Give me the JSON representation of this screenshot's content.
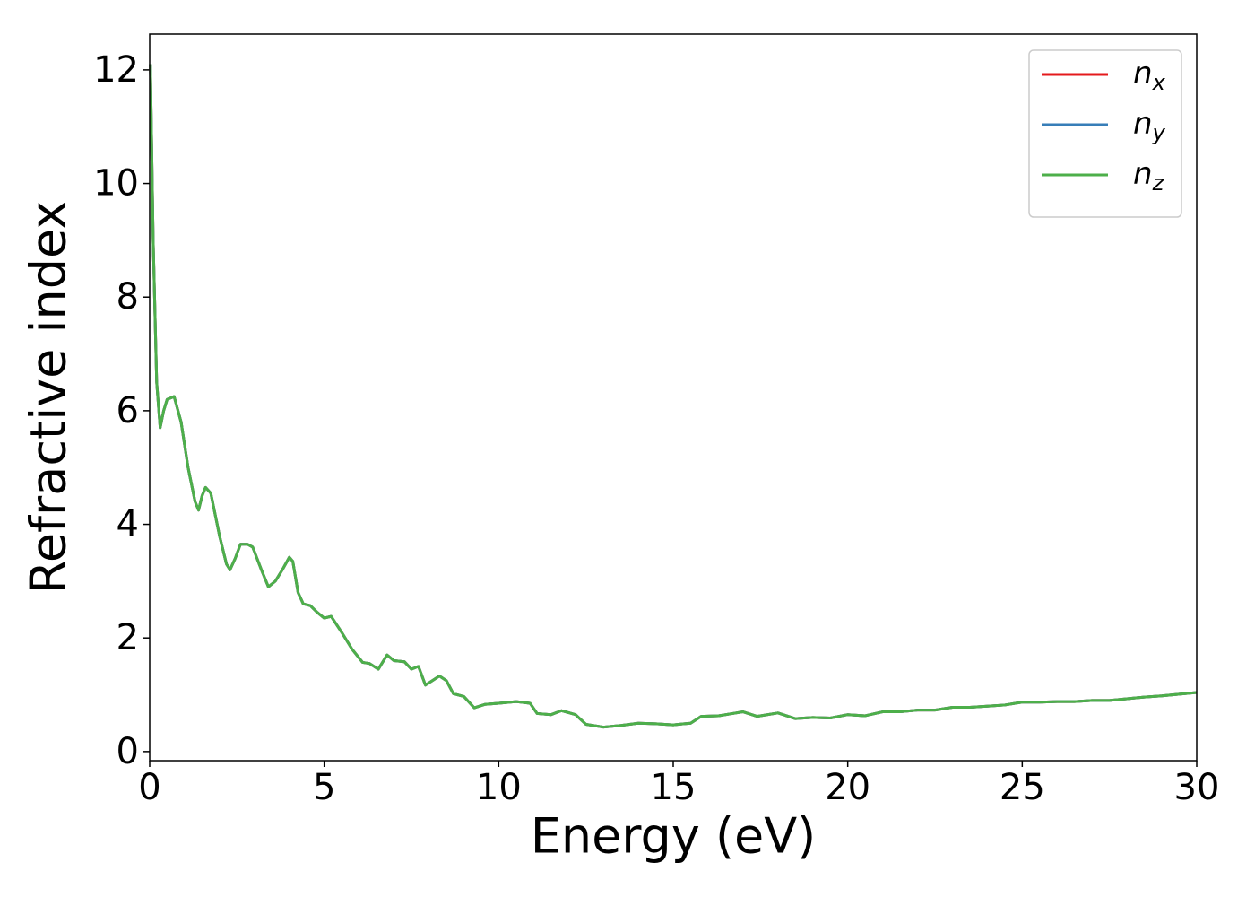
{
  "chart_data": {
    "type": "line",
    "xlabel": "Energy (eV)",
    "ylabel": "Refractive index",
    "x": [
      0.02,
      0.1,
      0.2,
      0.3,
      0.4,
      0.5,
      0.7,
      0.9,
      1.1,
      1.3,
      1.4,
      1.5,
      1.6,
      1.75,
      2.0,
      2.2,
      2.3,
      2.45,
      2.6,
      2.8,
      2.95,
      3.2,
      3.4,
      3.6,
      3.8,
      4.0,
      4.1,
      4.25,
      4.4,
      4.6,
      4.8,
      5.0,
      5.2,
      5.5,
      5.8,
      6.1,
      6.3,
      6.55,
      6.8,
      7.0,
      7.3,
      7.5,
      7.7,
      7.9,
      8.1,
      8.3,
      8.5,
      8.7,
      9.0,
      9.3,
      9.6,
      10.0,
      10.5,
      10.9,
      11.1,
      11.5,
      11.8,
      12.2,
      12.5,
      13.0,
      13.5,
      14.0,
      14.5,
      15.0,
      15.5,
      15.8,
      16.3,
      16.8,
      17.0,
      17.4,
      18.0,
      18.5,
      19.0,
      19.5,
      20.0,
      20.5,
      21.0,
      21.5,
      22.0,
      22.5,
      23.0,
      23.5,
      24.0,
      24.5,
      25.0,
      25.5,
      26.0,
      26.5,
      27.0,
      27.5,
      28.0,
      28.5,
      29.0,
      29.5,
      30.0
    ],
    "series": [
      {
        "name": "nx",
        "color": "#e41a1c",
        "values": [
          12.1,
          9,
          6.5,
          5.7,
          6.0,
          6.2,
          6.25,
          5.8,
          5.0,
          4.4,
          4.25,
          4.5,
          4.65,
          4.55,
          3.8,
          3.3,
          3.2,
          3.4,
          3.65,
          3.65,
          3.6,
          3.2,
          2.9,
          3.0,
          3.2,
          3.42,
          3.35,
          2.8,
          2.6,
          2.57,
          2.45,
          2.35,
          2.38,
          2.1,
          1.8,
          1.57,
          1.55,
          1.45,
          1.7,
          1.6,
          1.58,
          1.45,
          1.5,
          1.17,
          1.25,
          1.33,
          1.25,
          1.02,
          0.97,
          0.77,
          0.83,
          0.85,
          0.88,
          0.85,
          0.67,
          0.65,
          0.72,
          0.65,
          0.48,
          0.43,
          0.46,
          0.5,
          0.49,
          0.47,
          0.5,
          0.62,
          0.63,
          0.68,
          0.7,
          0.62,
          0.68,
          0.58,
          0.6,
          0.59,
          0.65,
          0.63,
          0.7,
          0.7,
          0.73,
          0.73,
          0.78,
          0.78,
          0.8,
          0.82,
          0.87,
          0.87,
          0.88,
          0.88,
          0.9,
          0.9,
          0.93,
          0.96,
          0.98,
          1.01,
          1.04
        ]
      },
      {
        "name": "ny",
        "color": "#377eb8",
        "values": [
          12.1,
          9,
          6.5,
          5.7,
          6.0,
          6.2,
          6.25,
          5.8,
          5.0,
          4.4,
          4.25,
          4.5,
          4.65,
          4.55,
          3.8,
          3.3,
          3.2,
          3.4,
          3.65,
          3.65,
          3.6,
          3.2,
          2.9,
          3.0,
          3.2,
          3.42,
          3.35,
          2.8,
          2.6,
          2.57,
          2.45,
          2.35,
          2.38,
          2.1,
          1.8,
          1.57,
          1.55,
          1.45,
          1.7,
          1.6,
          1.58,
          1.45,
          1.5,
          1.17,
          1.25,
          1.33,
          1.25,
          1.02,
          0.97,
          0.77,
          0.83,
          0.85,
          0.88,
          0.85,
          0.67,
          0.65,
          0.72,
          0.65,
          0.48,
          0.43,
          0.46,
          0.5,
          0.49,
          0.47,
          0.5,
          0.62,
          0.63,
          0.68,
          0.7,
          0.62,
          0.68,
          0.58,
          0.6,
          0.59,
          0.65,
          0.63,
          0.7,
          0.7,
          0.73,
          0.73,
          0.78,
          0.78,
          0.8,
          0.82,
          0.87,
          0.87,
          0.88,
          0.88,
          0.9,
          0.9,
          0.93,
          0.96,
          0.98,
          1.01,
          1.04
        ]
      },
      {
        "name": "nz",
        "color": "#4daf4a",
        "values": [
          12.1,
          9,
          6.5,
          5.7,
          6.0,
          6.2,
          6.25,
          5.8,
          5.0,
          4.4,
          4.25,
          4.5,
          4.65,
          4.55,
          3.8,
          3.3,
          3.2,
          3.4,
          3.65,
          3.65,
          3.6,
          3.2,
          2.9,
          3.0,
          3.2,
          3.42,
          3.35,
          2.8,
          2.6,
          2.57,
          2.45,
          2.35,
          2.38,
          2.1,
          1.8,
          1.57,
          1.55,
          1.45,
          1.7,
          1.6,
          1.58,
          1.45,
          1.5,
          1.17,
          1.25,
          1.33,
          1.25,
          1.02,
          0.97,
          0.77,
          0.83,
          0.85,
          0.88,
          0.85,
          0.67,
          0.65,
          0.72,
          0.65,
          0.48,
          0.43,
          0.46,
          0.5,
          0.49,
          0.47,
          0.5,
          0.62,
          0.63,
          0.68,
          0.7,
          0.62,
          0.68,
          0.58,
          0.6,
          0.59,
          0.65,
          0.63,
          0.7,
          0.7,
          0.73,
          0.73,
          0.78,
          0.78,
          0.8,
          0.82,
          0.87,
          0.87,
          0.88,
          0.88,
          0.9,
          0.9,
          0.93,
          0.96,
          0.98,
          1.01,
          1.04
        ]
      }
    ],
    "xlim": [
      0,
      30
    ],
    "xticks": [
      0,
      5,
      10,
      15,
      20,
      25,
      30
    ],
    "ylim": [
      -0.16,
      12.63
    ],
    "yticks": [
      0,
      2,
      4,
      6,
      8,
      10,
      12
    ],
    "grid": false,
    "legend": "upper right"
  }
}
